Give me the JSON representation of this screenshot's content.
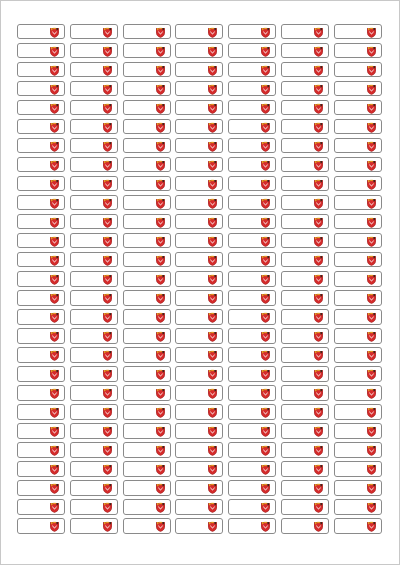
{
  "sheet": {
    "columns": 7,
    "rows": 27,
    "icon": "red-shield-emblem-icon"
  },
  "colors": {
    "label_border": "#8a8a8a",
    "emblem_red": "#d52b2b",
    "emblem_dark_red": "#9e1b1b",
    "emblem_gold": "#e0a020",
    "emblem_dark": "#3a2a1a"
  }
}
